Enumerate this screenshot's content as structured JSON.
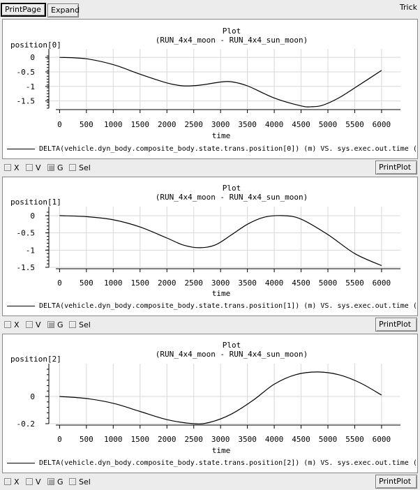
{
  "toolbar": {
    "print_page_label": "PrintPage",
    "expand_label": "Expand",
    "app_name": "Trick"
  },
  "panels": [
    {
      "title": "Plot",
      "subtitle": "(RUN_4x4_moon - RUN_4x4_sun_moon)",
      "ylabel": "position[0]",
      "xlabel": "time",
      "legend": "DELTA(vehicle.dyn_body.composite_body.state.trans.position[0]) (m) VS. sys.exec.out.time (s",
      "checkboxes": [
        {
          "label": "X",
          "checked": false
        },
        {
          "label": "V",
          "checked": false
        },
        {
          "label": "G",
          "checked": true
        },
        {
          "label": "Sel",
          "checked": false
        }
      ],
      "print_plot_label": "PrintPlot"
    },
    {
      "title": "Plot",
      "subtitle": "(RUN_4x4_moon - RUN_4x4_sun_moon)",
      "ylabel": "position[1]",
      "xlabel": "time",
      "legend": "DELTA(vehicle.dyn_body.composite_body.state.trans.position[1]) (m) VS. sys.exec.out.time (s",
      "checkboxes": [
        {
          "label": "X",
          "checked": false
        },
        {
          "label": "V",
          "checked": false
        },
        {
          "label": "G",
          "checked": true
        },
        {
          "label": "Sel",
          "checked": false
        }
      ],
      "print_plot_label": "PrintPlot"
    },
    {
      "title": "Plot",
      "subtitle": "(RUN_4x4_moon - RUN_4x4_sun_moon)",
      "ylabel": "position[2]",
      "xlabel": "time",
      "legend": "DELTA(vehicle.dyn_body.composite_body.state.trans.position[2]) (m) VS. sys.exec.out.time (s",
      "checkboxes": [
        {
          "label": "X",
          "checked": false
        },
        {
          "label": "V",
          "checked": false
        },
        {
          "label": "G",
          "checked": true
        },
        {
          "label": "Sel",
          "checked": false
        }
      ],
      "print_plot_label": "PrintPlot"
    }
  ],
  "chart_data": [
    {
      "type": "line",
      "title": "Plot",
      "subtitle": "(RUN_4x4_moon - RUN_4x4_sun_moon)",
      "xlabel": "time",
      "ylabel": "position[0]",
      "xlim": [
        -200,
        6300
      ],
      "ylim": [
        -1.75,
        0.1
      ],
      "xticks": [
        0,
        500,
        1000,
        1500,
        2000,
        2500,
        3000,
        3500,
        4000,
        4500,
        5000,
        5500,
        6000
      ],
      "yticks": [
        0,
        -0.5,
        -1,
        -1.5
      ],
      "ytick_labels": [
        "0",
        "-0.5",
        "-1",
        "-1.5"
      ],
      "grid": true,
      "x": [
        0,
        500,
        1000,
        1500,
        2000,
        2300,
        2600,
        3000,
        3200,
        3500,
        4000,
        4500,
        4700,
        4900,
        5200,
        5500,
        6000
      ],
      "y": [
        0,
        -0.05,
        -0.25,
        -0.58,
        -0.88,
        -0.98,
        -0.96,
        -0.85,
        -0.84,
        -0.98,
        -1.4,
        -1.67,
        -1.7,
        -1.65,
        -1.4,
        -1.05,
        -0.45
      ]
    },
    {
      "type": "line",
      "title": "Plot",
      "subtitle": "(RUN_4x4_moon - RUN_4x4_sun_moon)",
      "xlabel": "time",
      "ylabel": "position[1]",
      "xlim": [
        -200,
        6300
      ],
      "ylim": [
        -1.5,
        0.1
      ],
      "xticks": [
        0,
        500,
        1000,
        1500,
        2000,
        2500,
        3000,
        3500,
        4000,
        4500,
        5000,
        5500,
        6000
      ],
      "yticks": [
        0,
        -0.5,
        -1,
        -1.5
      ],
      "ytick_labels": [
        "0",
        "-0.5",
        "-1",
        "-1.5"
      ],
      "grid": true,
      "x": [
        0,
        500,
        1000,
        1500,
        2000,
        2300,
        2600,
        2900,
        3200,
        3500,
        3800,
        4150,
        4500,
        5000,
        5500,
        6000
      ],
      "y": [
        0,
        -0.03,
        -0.12,
        -0.33,
        -0.65,
        -0.85,
        -0.93,
        -0.85,
        -0.56,
        -0.25,
        -0.05,
        0,
        -0.1,
        -0.55,
        -1.1,
        -1.45
      ]
    },
    {
      "type": "line",
      "title": "Plot",
      "subtitle": "(RUN_4x4_moon - RUN_4x4_sun_moon)",
      "xlabel": "time",
      "ylabel": "position[2]",
      "xlim": [
        -200,
        6300
      ],
      "ylim": [
        -0.2,
        0.2
      ],
      "xticks": [
        0,
        500,
        1000,
        1500,
        2000,
        2500,
        3000,
        3500,
        4000,
        4500,
        5000,
        5500,
        6000
      ],
      "yticks": [
        0,
        -0.2
      ],
      "ytick_labels": [
        "0",
        "-0.2"
      ],
      "grid": true,
      "x": [
        0,
        500,
        1000,
        1500,
        2000,
        2500,
        2800,
        3200,
        3600,
        4000,
        4400,
        4800,
        5200,
        5600,
        6000
      ],
      "y": [
        0,
        -0.015,
        -0.05,
        -0.11,
        -0.17,
        -0.2,
        -0.19,
        -0.13,
        -0.03,
        0.09,
        0.16,
        0.18,
        0.16,
        0.1,
        0.01
      ]
    }
  ]
}
